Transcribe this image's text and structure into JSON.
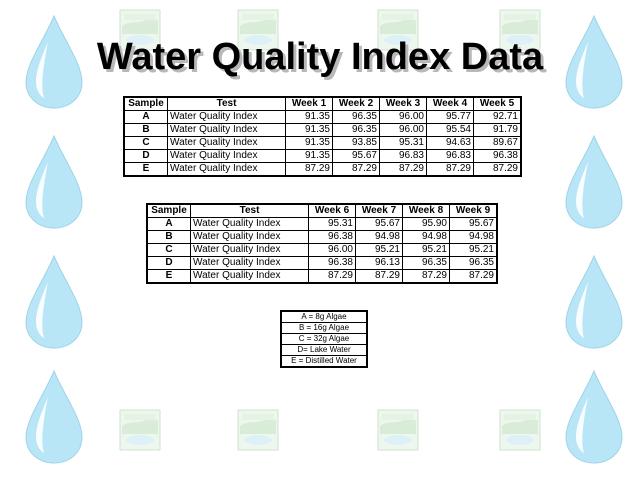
{
  "title": "Water Quality Index Data",
  "table1": {
    "headers": [
      "Sample",
      "Test",
      "Week 1",
      "Week 2",
      "Week 3",
      "Week 4",
      "Week 5"
    ],
    "rows": [
      {
        "sample": "A",
        "test": "Water Quality Index",
        "values": [
          "91.35",
          "96.35",
          "96.00",
          "95.77",
          "92.71"
        ]
      },
      {
        "sample": "B",
        "test": "Water Quality Index",
        "values": [
          "91.35",
          "96.35",
          "96.00",
          "95.54",
          "91.79"
        ]
      },
      {
        "sample": "C",
        "test": "Water Quality Index",
        "values": [
          "91.35",
          "93.85",
          "95.31",
          "94.63",
          "89.67"
        ]
      },
      {
        "sample": "D",
        "test": "Water Quality Index",
        "values": [
          "91.35",
          "95.67",
          "96.83",
          "96.83",
          "96.38"
        ]
      },
      {
        "sample": "E",
        "test": "Water Quality Index",
        "values": [
          "87.29",
          "87.29",
          "87.29",
          "87.29",
          "87.29"
        ]
      }
    ]
  },
  "table2": {
    "headers": [
      "Sample",
      "Test",
      "Week 6",
      "Week 7",
      "Week 8",
      "Week 9"
    ],
    "rows": [
      {
        "sample": "A",
        "test": "Water Quality Index",
        "values": [
          "95.31",
          "95.67",
          "95.90",
          "95.67"
        ]
      },
      {
        "sample": "B",
        "test": "Water Quality Index",
        "values": [
          "96.38",
          "94.98",
          "94.98",
          "94.98"
        ]
      },
      {
        "sample": "C",
        "test": "Water Quality Index",
        "values": [
          "96.00",
          "95.21",
          "95.21",
          "95.21"
        ]
      },
      {
        "sample": "D",
        "test": "Water Quality Index",
        "values": [
          "96.38",
          "96.13",
          "96.35",
          "96.35"
        ]
      },
      {
        "sample": "E",
        "test": "Water Quality Index",
        "values": [
          "87.29",
          "87.29",
          "87.29",
          "87.29"
        ]
      }
    ]
  },
  "legend": [
    "A = 8g Algae",
    "B = 16g Algae",
    "C = 32g Algae",
    "D= Lake Water",
    "E = Distilled Water"
  ],
  "background": {
    "drop_icon": "water-drop-icon",
    "thumb_icon": "lake-thumbnail-icon",
    "drop_color": "#b9e6f7",
    "drop_highlight": "#ffffff",
    "thumb_color": "#cfe8cf"
  }
}
